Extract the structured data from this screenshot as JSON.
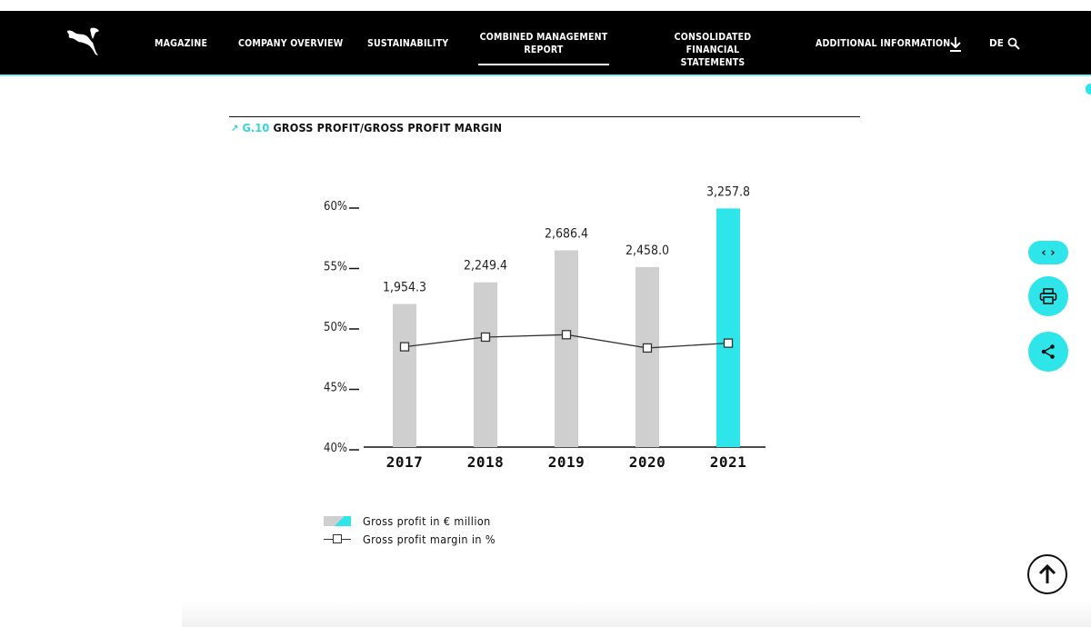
{
  "nav": {
    "items": [
      {
        "label_lines": [
          "MAGAZINE"
        ],
        "active": false
      },
      {
        "label_lines": [
          "COMPANY OVERVIEW"
        ],
        "active": false
      },
      {
        "label_lines": [
          "SUSTAINABILITY"
        ],
        "active": false
      },
      {
        "label_lines": [
          "COMBINED MANAGEMENT",
          "REPORT"
        ],
        "active": true
      },
      {
        "label_lines": [
          "CONSOLIDATED FINANCIAL",
          "STATEMENTS"
        ],
        "active": false
      },
      {
        "label_lines": [
          "ADDITIONAL INFORMATION"
        ],
        "active": false
      }
    ],
    "lang": "DE",
    "icons": [
      "puma-logo-icon",
      "download-icon",
      "search-icon"
    ]
  },
  "heading": {
    "id": "G.10",
    "title": "GROSS PROFIT/GROSS PROFIT MARGIN"
  },
  "chart_data": {
    "type": "bar",
    "title": "GROSS PROFIT/GROSS PROFIT MARGIN",
    "categories": [
      "2017",
      "2018",
      "2019",
      "2020",
      "2021"
    ],
    "series": [
      {
        "name": "Gross profit in € million",
        "type": "bar",
        "values": [
          1954.3,
          2249.4,
          2686.4,
          2458.0,
          3257.8
        ],
        "labels": [
          "1,954.3",
          "2,249.4",
          "2,686.4",
          "2,458.0",
          "3,257.8"
        ],
        "colors": [
          "#cfcfcf",
          "#cfcfcf",
          "#cfcfcf",
          "#cfcfcf",
          "#2ee6ea"
        ]
      },
      {
        "name": "Gross profit margin in %",
        "type": "line",
        "values": [
          48.3,
          49.1,
          49.3,
          48.2,
          48.6
        ]
      }
    ],
    "y_axis": {
      "ticks": [
        "60%",
        "55%",
        "50%",
        "45%",
        "40%"
      ],
      "tick_values": [
        60,
        55,
        50,
        45,
        40
      ],
      "ylim": [
        40,
        60
      ]
    },
    "bar_value_range": [
      0,
      3300
    ],
    "grid": false,
    "legend_position": "bottom-left"
  },
  "legend": [
    {
      "label": "Gross profit in € million",
      "swatch": "bar"
    },
    {
      "label": "Gross profit margin in %",
      "swatch": "line"
    }
  ],
  "side_buttons": {
    "icons": [
      "code-icon",
      "print-icon",
      "share-icon",
      "arrow-up-icon"
    ],
    "code_label": "‹ ›"
  }
}
